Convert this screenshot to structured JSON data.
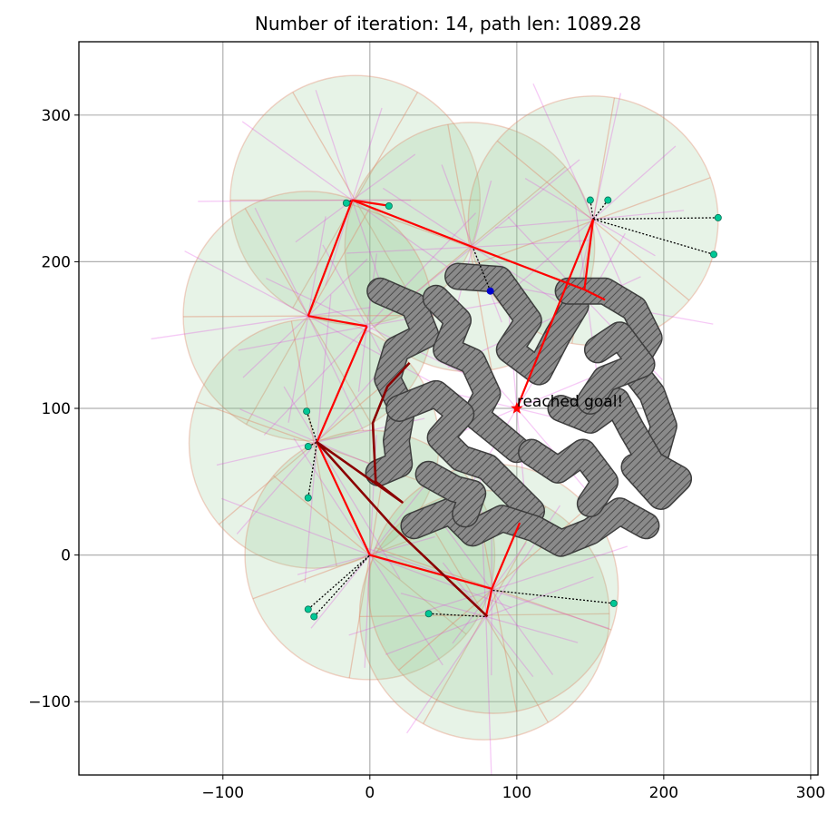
{
  "chart_data": {
    "type": "scatter",
    "title": "Number of iteration: 14, path len: 1089.28",
    "xlabel": "",
    "ylabel": "",
    "xlim": [
      -198,
      305
    ],
    "ylim": [
      -150,
      350
    ],
    "grid": true,
    "xticks": [
      -100,
      0,
      100,
      200,
      300
    ],
    "yticks": [
      -100,
      0,
      100,
      200,
      300
    ],
    "annotation": {
      "text": "reached goal!",
      "x": 100,
      "y": 100
    },
    "colors": {
      "visibility_fill": "#90c890",
      "visibility_edge": "#e08060",
      "ray": "#e08c6c",
      "fan": "#e040e0",
      "obstacle_fill": "#8a8a8a",
      "tree": "#ff0000",
      "final_path": "#8b0000",
      "sample": "#00c896",
      "goal": "#ff0000",
      "query": "#0000cc"
    },
    "visibility_regions": [
      {
        "cx": -10,
        "cy": 242,
        "r": 85
      },
      {
        "cx": 68,
        "cy": 210,
        "r": 85
      },
      {
        "cx": 152,
        "cy": 228,
        "r": 85
      },
      {
        "cx": -42,
        "cy": 163,
        "r": 85
      },
      {
        "cx": -38,
        "cy": 76,
        "r": 85
      },
      {
        "cx": 0,
        "cy": 0,
        "r": 85
      },
      {
        "cx": 78,
        "cy": -41,
        "r": 85
      },
      {
        "cx": 84,
        "cy": -23,
        "r": 85
      }
    ],
    "tree_nodes": [
      {
        "x": -12,
        "y": 242
      },
      {
        "x": 70,
        "y": 210
      },
      {
        "x": 152,
        "y": 229
      },
      {
        "x": -42,
        "y": 163
      },
      {
        "x": -2,
        "y": 156
      },
      {
        "x": -36,
        "y": 77
      },
      {
        "x": 0,
        "y": 0
      },
      {
        "x": 83,
        "y": -24
      },
      {
        "x": 79,
        "y": -42
      },
      {
        "x": 100,
        "y": 100
      },
      {
        "x": 148,
        "y": 173
      }
    ],
    "tree_edges": [
      [
        [
          -12,
          242
        ],
        [
          -42,
          163
        ]
      ],
      [
        [
          -12,
          242
        ],
        [
          70,
          210
        ]
      ],
      [
        [
          70,
          210
        ],
        [
          146,
          181
        ]
      ],
      [
        [
          146,
          181
        ],
        [
          152,
          229
        ]
      ],
      [
        [
          152,
          229
        ],
        [
          100,
          100
        ]
      ],
      [
        [
          -42,
          163
        ],
        [
          -2,
          156
        ]
      ],
      [
        [
          -2,
          156
        ],
        [
          -36,
          77
        ]
      ],
      [
        [
          -36,
          77
        ],
        [
          0,
          0
        ]
      ],
      [
        [
          0,
          0
        ],
        [
          83,
          -23
        ]
      ],
      [
        [
          83,
          -23
        ],
        [
          79,
          -42
        ]
      ],
      [
        [
          -12,
          242
        ],
        [
          14,
          238
        ]
      ],
      [
        [
          146,
          181
        ],
        [
          160,
          174
        ]
      ],
      [
        [
          83,
          -23
        ],
        [
          102,
          22
        ]
      ]
    ],
    "final_path": [
      {
        "x": 27,
        "y": 131
      },
      {
        "x": 12,
        "y": 115
      },
      {
        "x": 2,
        "y": 90
      },
      {
        "x": 4,
        "y": 50
      },
      {
        "x": 22,
        "y": 36
      },
      {
        "x": -36,
        "y": 77
      },
      {
        "x": 15,
        "y": 20
      },
      {
        "x": 80,
        "y": -42
      }
    ],
    "samples": [
      {
        "x": -16,
        "y": 240
      },
      {
        "x": 13,
        "y": 238
      },
      {
        "x": 150,
        "y": 242
      },
      {
        "x": 162,
        "y": 242
      },
      {
        "x": 237,
        "y": 230
      },
      {
        "x": 234,
        "y": 205
      },
      {
        "x": -43,
        "y": 98
      },
      {
        "x": -42,
        "y": 74
      },
      {
        "x": -42,
        "y": 39
      },
      {
        "x": -42,
        "y": -37
      },
      {
        "x": -38,
        "y": -42
      },
      {
        "x": 40,
        "y": -40
      },
      {
        "x": 166,
        "y": -33
      },
      {
        "x": 82,
        "y": 180
      }
    ],
    "goal": {
      "x": 100,
      "y": 100
    }
  }
}
